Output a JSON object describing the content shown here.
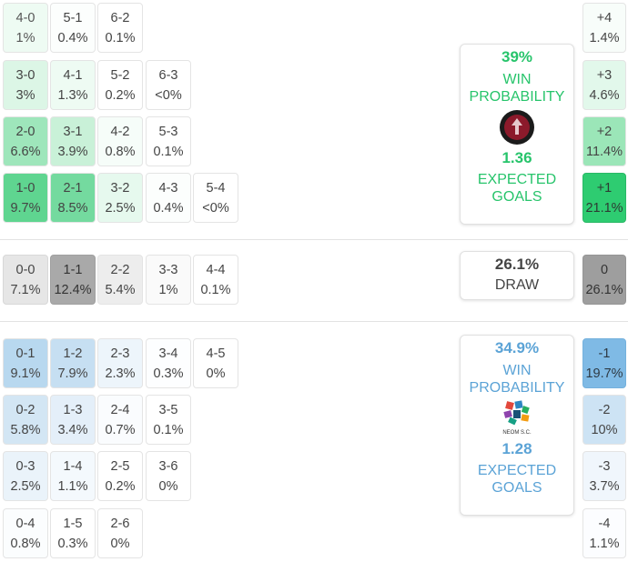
{
  "home": {
    "win_pct": "39%",
    "win_label_1": "WIN",
    "win_label_2": "PROBABILITY",
    "xg": "1.36",
    "xg_label_1": "EXPECTED",
    "xg_label_2": "GOALS",
    "logo_text": "AL KHOLOOD SAUDI ARABIA",
    "accent": "#2ecc71"
  },
  "draw": {
    "pct": "26.1%",
    "label": "DRAW"
  },
  "away": {
    "win_pct": "34.9%",
    "win_label_1": "WIN",
    "win_label_2": "PROBABILITY",
    "xg": "1.28",
    "xg_label_1": "EXPECTED",
    "xg_label_2": "GOALS",
    "logo_text": "NEOM S.C.",
    "accent": "#5ba3d6"
  },
  "home_scores": [
    {
      "score": "4-0",
      "prob": "1%"
    },
    {
      "score": "5-1",
      "prob": "0.4%"
    },
    {
      "score": "6-2",
      "prob": "0.1%"
    },
    {
      "score": "3-0",
      "prob": "3%"
    },
    {
      "score": "4-1",
      "prob": "1.3%"
    },
    {
      "score": "5-2",
      "prob": "0.2%"
    },
    {
      "score": "6-3",
      "prob": "<0%"
    },
    {
      "score": "2-0",
      "prob": "6.6%"
    },
    {
      "score": "3-1",
      "prob": "3.9%"
    },
    {
      "score": "4-2",
      "prob": "0.8%"
    },
    {
      "score": "5-3",
      "prob": "0.1%"
    },
    {
      "score": "1-0",
      "prob": "9.7%"
    },
    {
      "score": "2-1",
      "prob": "8.5%"
    },
    {
      "score": "3-2",
      "prob": "2.5%"
    },
    {
      "score": "4-3",
      "prob": "0.4%"
    },
    {
      "score": "5-4",
      "prob": "<0%"
    }
  ],
  "draw_scores": [
    {
      "score": "0-0",
      "prob": "7.1%"
    },
    {
      "score": "1-1",
      "prob": "12.4%"
    },
    {
      "score": "2-2",
      "prob": "5.4%"
    },
    {
      "score": "3-3",
      "prob": "1%"
    },
    {
      "score": "4-4",
      "prob": "0.1%"
    }
  ],
  "away_scores": [
    {
      "score": "0-1",
      "prob": "9.1%"
    },
    {
      "score": "1-2",
      "prob": "7.9%"
    },
    {
      "score": "2-3",
      "prob": "2.3%"
    },
    {
      "score": "3-4",
      "prob": "0.3%"
    },
    {
      "score": "4-5",
      "prob": "0%"
    },
    {
      "score": "0-2",
      "prob": "5.8%"
    },
    {
      "score": "1-3",
      "prob": "3.4%"
    },
    {
      "score": "2-4",
      "prob": "0.7%"
    },
    {
      "score": "3-5",
      "prob": "0.1%"
    },
    {
      "score": "0-3",
      "prob": "2.5%"
    },
    {
      "score": "1-4",
      "prob": "1.1%"
    },
    {
      "score": "2-5",
      "prob": "0.2%"
    },
    {
      "score": "3-6",
      "prob": "0%"
    },
    {
      "score": "0-4",
      "prob": "0.8%"
    },
    {
      "score": "1-5",
      "prob": "0.3%"
    },
    {
      "score": "2-6",
      "prob": "0%"
    }
  ],
  "margins": [
    {
      "label": "+4",
      "prob": "1.4%"
    },
    {
      "label": "+3",
      "prob": "4.6%"
    },
    {
      "label": "+2",
      "prob": "11.4%"
    },
    {
      "label": "+1",
      "prob": "21.1%"
    },
    {
      "label": "0",
      "prob": "26.1%"
    },
    {
      "label": "-1",
      "prob": "19.7%"
    },
    {
      "label": "-2",
      "prob": "10%"
    },
    {
      "label": "-3",
      "prob": "3.7%"
    },
    {
      "label": "-4",
      "prob": "1.1%"
    }
  ]
}
